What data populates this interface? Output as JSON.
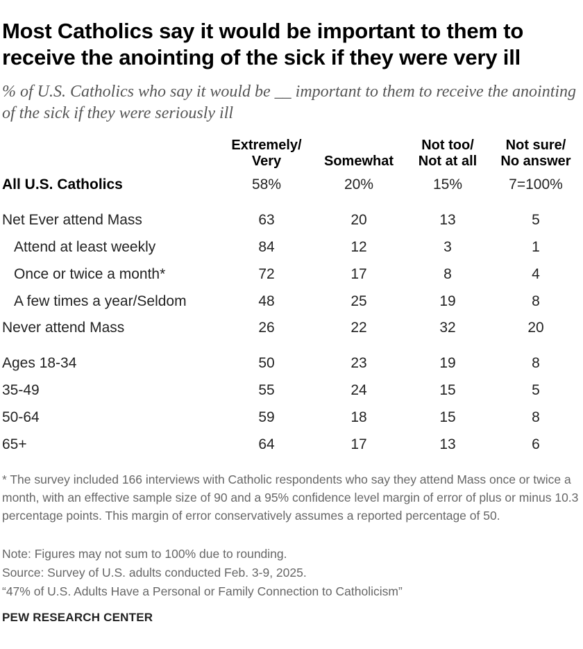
{
  "title": "Most Catholics say it would be important to them to receive the anointing of the sick if they were very ill",
  "subtitle": "% of U.S. Catholics who say it would be __ important to them to receive the anointing of the sick if they were seriously ill",
  "chart_data": {
    "type": "table",
    "columns": [
      {
        "line1": "Extremely/",
        "line2": "Very"
      },
      {
        "line1": "",
        "line2": "Somewhat"
      },
      {
        "line1": "Not too/",
        "line2": "Not at all"
      },
      {
        "line1": "Not sure/",
        "line2": "No answer"
      }
    ],
    "rows": [
      {
        "label": "All U.S. Catholics",
        "values": [
          "58%",
          "20%",
          "15%",
          "7=100%"
        ]
      },
      {
        "label": "Net Ever attend Mass",
        "values": [
          "63",
          "20",
          "13",
          "5"
        ]
      },
      {
        "label": "Attend at least weekly",
        "values": [
          "84",
          "12",
          "3",
          "1"
        ]
      },
      {
        "label": "Once or twice a month*",
        "values": [
          "72",
          "17",
          "8",
          "4"
        ]
      },
      {
        "label": "A few times a year/Seldom",
        "values": [
          "48",
          "25",
          "19",
          "8"
        ]
      },
      {
        "label": "Never attend Mass",
        "values": [
          "26",
          "22",
          "32",
          "20"
        ]
      },
      {
        "label": "Ages 18-34",
        "values": [
          "50",
          "23",
          "19",
          "8"
        ]
      },
      {
        "label": "35-49",
        "values": [
          "55",
          "24",
          "15",
          "5"
        ]
      },
      {
        "label": "50-64",
        "values": [
          "59",
          "18",
          "15",
          "8"
        ]
      },
      {
        "label": "65+",
        "values": [
          "64",
          "17",
          "13",
          "6"
        ]
      }
    ]
  },
  "notes": {
    "asterisk": "* The survey included 166 interviews with Catholic respondents who say they attend Mass once or twice a month, with an effective sample size of 90 and a 95% confidence level margin of error of plus or minus 10.3 percentage points. This margin of error conservatively assumes a reported percentage of 50.",
    "note": "Note: Figures may not sum to 100% due to rounding.",
    "source": "Source: Survey of U.S. adults conducted Feb. 3-9, 2025.",
    "report": "“47% of U.S. Adults Have a Personal or Family Connection to Catholicism”"
  },
  "org": "PEW RESEARCH CENTER"
}
